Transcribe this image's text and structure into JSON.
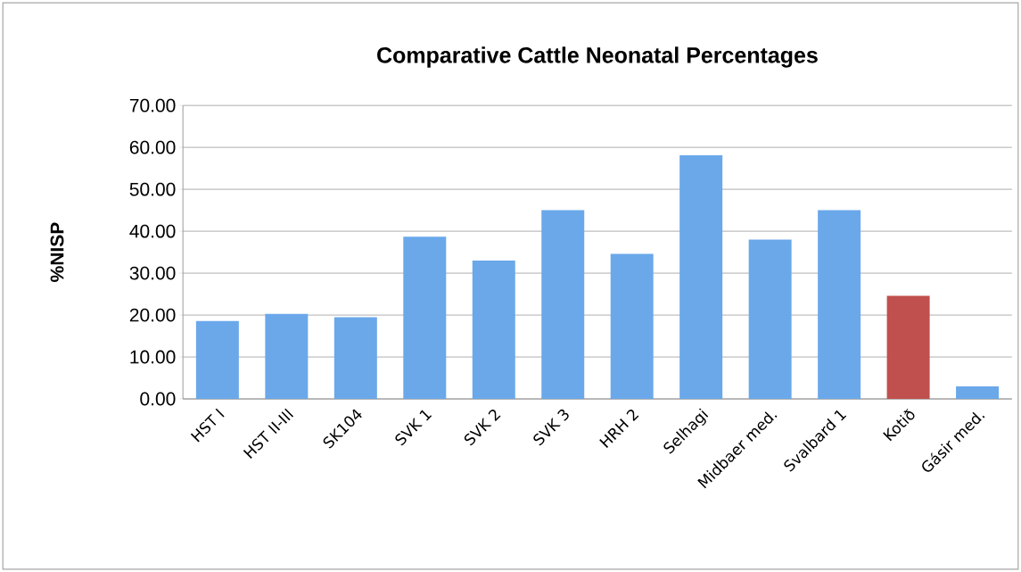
{
  "chart_data": {
    "type": "bar",
    "title": "Comparative Cattle Neonatal Percentages",
    "ylabel": "%NISP",
    "categories": [
      "HST I",
      "HST II-III",
      "SK104",
      "SVK 1",
      "SVK 2",
      "SVK 3",
      "HRH 2",
      "Selhagi",
      "Midbaer med.",
      "Svalbard 1",
      "Kotið",
      "Gásir med."
    ],
    "values": [
      18.6,
      20.3,
      19.5,
      38.7,
      33.0,
      45.0,
      34.6,
      58.1,
      38.0,
      45.0,
      24.6,
      3.0
    ],
    "colors": [
      "#6aa8ea",
      "#6aa8ea",
      "#6aa8ea",
      "#6aa8ea",
      "#6aa8ea",
      "#6aa8ea",
      "#6aa8ea",
      "#6aa8ea",
      "#6aa8ea",
      "#6aa8ea",
      "#c0504d",
      "#6aa8ea"
    ],
    "ylim": [
      0,
      70
    ],
    "yticks": [
      {
        "value": 0,
        "label": "0.00"
      },
      {
        "value": 10,
        "label": "10.00"
      },
      {
        "value": 20,
        "label": "20.00"
      },
      {
        "value": 30,
        "label": "30.00"
      },
      {
        "value": 40,
        "label": "40.00"
      },
      {
        "value": 50,
        "label": "50.00"
      },
      {
        "value": 60,
        "label": "60.00"
      },
      {
        "value": 70,
        "label": "70.00"
      }
    ],
    "grid": "y"
  }
}
